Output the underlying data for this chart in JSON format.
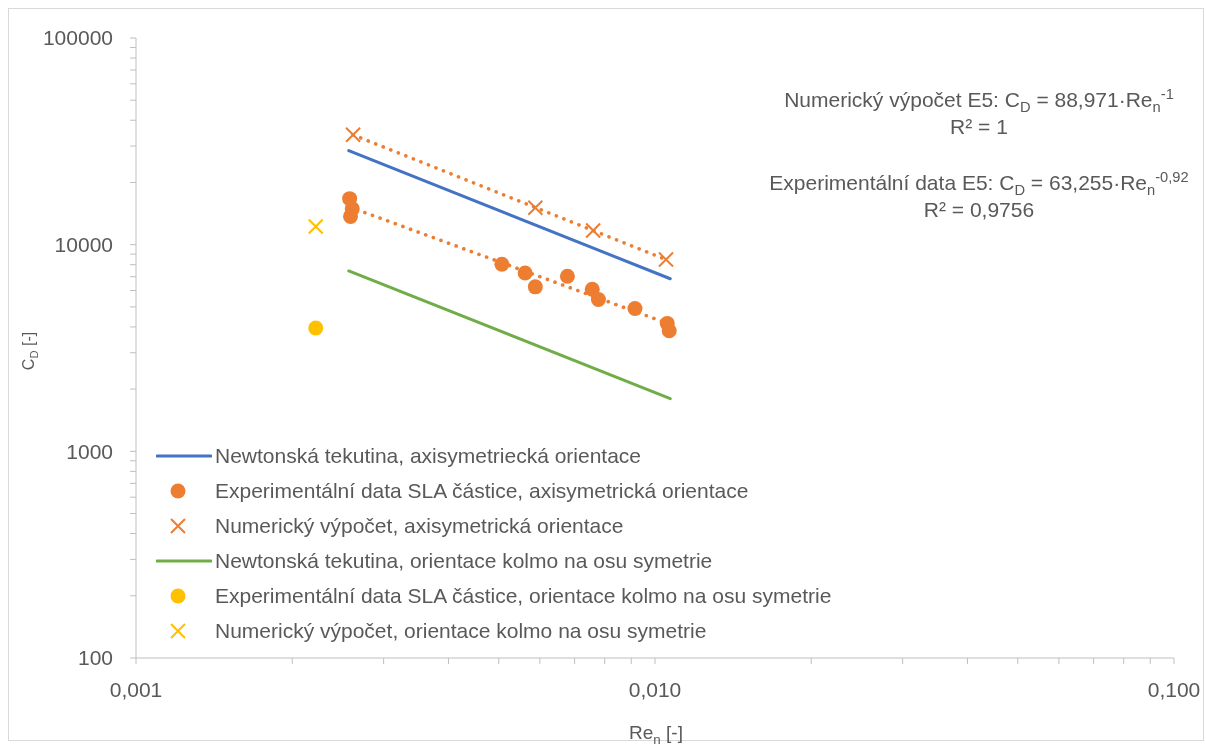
{
  "chart_data": {
    "type": "scatter",
    "xlabel": "Re$_{n}$ [-]",
    "ylabel": "C$_{D}$ [-]",
    "annotations": [
      "Numerický výpočet E5: C$_{D}$ = 88,971·Re$_{n}$$^{-1}$\nR² = 1",
      "Experimentální data E5: C$_{D}$ = 63,255·Re$_{n}$$^{-0,92}$\nR² = 0,9756"
    ],
    "log": "xy",
    "xlim": [
      0.001,
      0.1
    ],
    "ylim": [
      100,
      100000
    ],
    "xticks": [
      {
        "value": 0.001,
        "label": "0,001"
      },
      {
        "value": 0.002,
        "label": null
      },
      {
        "value": 0.003,
        "label": null
      },
      {
        "value": 0.004,
        "label": null
      },
      {
        "value": 0.005,
        "label": null
      },
      {
        "value": 0.006,
        "label": null
      },
      {
        "value": 0.007,
        "label": null
      },
      {
        "value": 0.008,
        "label": null
      },
      {
        "value": 0.009,
        "label": null
      },
      {
        "value": 0.01,
        "label": "0,010"
      },
      {
        "value": 0.02,
        "label": null
      },
      {
        "value": 0.03,
        "label": null
      },
      {
        "value": 0.04,
        "label": null
      },
      {
        "value": 0.05,
        "label": null
      },
      {
        "value": 0.06,
        "label": null
      },
      {
        "value": 0.07,
        "label": null
      },
      {
        "value": 0.08,
        "label": null
      },
      {
        "value": 0.09,
        "label": null
      },
      {
        "value": 0.1,
        "label": "0,100"
      }
    ],
    "yticks": [
      100,
      {
        "value": 200,
        "label": null
      },
      {
        "value": 300,
        "label": null
      },
      {
        "value": 400,
        "label": null
      },
      {
        "value": 500,
        "label": null
      },
      {
        "value": 600,
        "label": null
      },
      {
        "value": 700,
        "label": null
      },
      {
        "value": 800,
        "label": null
      },
      {
        "value": 900,
        "label": null
      },
      1000,
      {
        "value": 2000,
        "label": null
      },
      {
        "value": 3000,
        "label": null
      },
      {
        "value": 4000,
        "label": null
      },
      {
        "value": 5000,
        "label": null
      },
      {
        "value": 6000,
        "label": null
      },
      {
        "value": 7000,
        "label": null
      },
      {
        "value": 8000,
        "label": null
      },
      {
        "value": 9000,
        "label": null
      },
      10000,
      {
        "value": 20000,
        "label": null
      },
      {
        "value": 30000,
        "label": null
      },
      {
        "value": 40000,
        "label": null
      },
      {
        "value": 50000,
        "label": null
      },
      {
        "value": 60000,
        "label": null
      },
      {
        "value": 70000,
        "label": null
      },
      {
        "value": 80000,
        "label": null
      },
      {
        "value": 90000,
        "label": null
      },
      100000
    ],
    "legend": "bottom left",
    "series": [
      {
        "name": "Newtonská tekutina, axisymetriecká orientace",
        "type": "line",
        "color": "#4472c4",
        "x": [
          0.00257,
          0.0107
        ],
        "values": [
          28500,
          6840
        ]
      },
      {
        "name": "Experimentální data SLA částice, axisymetrická orientace",
        "type": "scatter",
        "marker": "circle",
        "color": "#ed7d31",
        "x": [
          0.00258,
          0.00261,
          0.00259,
          0.00507,
          0.00562,
          0.00588,
          0.00678,
          0.00757,
          0.00778,
          0.00915,
          0.01056,
          0.01065
        ],
        "values": [
          16700,
          14900,
          13700,
          8040,
          7290,
          6250,
          7030,
          6090,
          5430,
          4910,
          4160,
          3830
        ]
      },
      {
        "name": "Numerický výpočet, axisymetrická orientace",
        "type": "scatter",
        "marker": "cross",
        "color": "#ed7d31",
        "x": [
          0.00262,
          0.00588,
          0.0076,
          0.0105
        ],
        "values": [
          34000,
          15100,
          11700,
          8470
        ]
      },
      {
        "name": "Newtonská tekutina, orientace kolmo na osu symetrie",
        "type": "line",
        "color": "#70ad47",
        "x": [
          0.00257,
          0.0107
        ],
        "values": [
          7460,
          1800
        ]
      },
      {
        "name": "Experimentální data SLA částice, orientace kolmo na osu symetrie",
        "type": "scatter",
        "marker": "circle",
        "color": "#ffc000",
        "x": [
          0.00222
        ],
        "values": [
          3950
        ]
      },
      {
        "name": "Numerický výpočet, orientace kolmo na osu symetrie",
        "type": "scatter",
        "marker": "cross",
        "color": "#ffc000",
        "x": [
          0.00222
        ],
        "values": [
          12250
        ]
      },
      {
        "type": "line",
        "line_style": "dotted",
        "color": "#ed7d31",
        "x": [
          0.00258,
          0.01065
        ],
        "values": [
          15220,
          4130
        ]
      },
      {
        "type": "line",
        "line_style": "dotted",
        "color": "#ed7d31",
        "x": [
          0.00262,
          0.0105
        ],
        "values": [
          33960,
          8470
        ]
      }
    ]
  }
}
